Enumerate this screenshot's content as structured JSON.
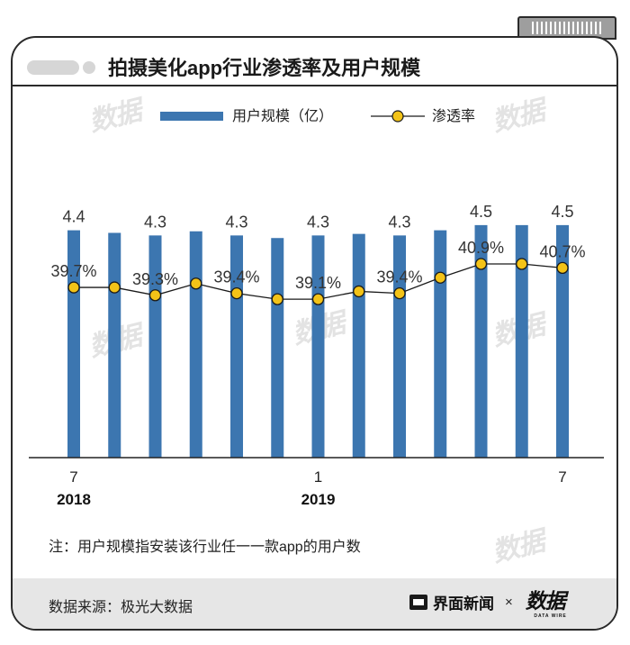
{
  "title": "拍摄美化app行业渗透率及用户规模",
  "chart_data": {
    "type": "bar+line",
    "series": [
      {
        "name": "用户规模（亿）",
        "type": "bar",
        "color": "#3c76b0",
        "values": [
          4.4,
          4.35,
          4.3,
          4.38,
          4.3,
          4.25,
          4.3,
          4.33,
          4.3,
          4.4,
          4.5,
          4.5,
          4.5
        ],
        "labels": [
          "4.4",
          "",
          "4.3",
          "",
          "4.3",
          "",
          "4.3",
          "",
          "4.3",
          "",
          "4.5",
          "",
          "4.5"
        ]
      },
      {
        "name": "渗透率",
        "type": "line",
        "color": "#1a1a1a",
        "marker_color": "#f3c318",
        "values": [
          39.7,
          39.7,
          39.3,
          39.9,
          39.4,
          39.1,
          39.1,
          39.5,
          39.4,
          40.2,
          40.9,
          40.9,
          40.7
        ],
        "labels": [
          "39.7%",
          "",
          "39.3%",
          "",
          "39.4%",
          "",
          "39.1%",
          "",
          "39.4%",
          "",
          "40.9%",
          "",
          "40.7%"
        ]
      }
    ],
    "x_ticks": [
      {
        "index": 0,
        "month": "7",
        "year": "2018"
      },
      {
        "index": 6,
        "month": "1",
        "year": "2019"
      },
      {
        "index": 12,
        "month": "7",
        "year": ""
      }
    ],
    "legend": [
      "用户规模（亿）",
      "渗透率"
    ],
    "bar_ylim": [
      0,
      5.3
    ],
    "line_ylim": [
      31,
      45
    ]
  },
  "note": "注：用户规模指安装该行业任一一款app的用户数",
  "footer": {
    "source": "数据来源：极光大数据",
    "brand": "界面新闻",
    "times": "×",
    "logo": "数据",
    "logo_sub": "DATA WIRE"
  },
  "watermark": "数据"
}
